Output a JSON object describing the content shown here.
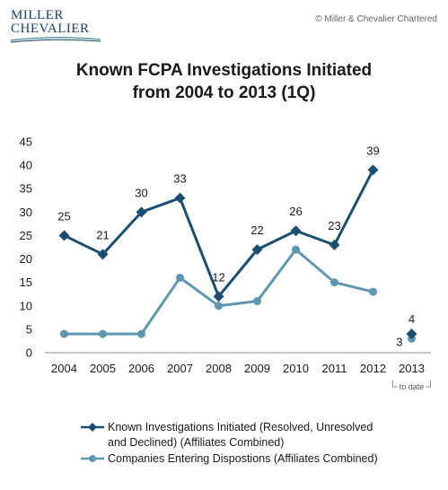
{
  "header": {
    "logo_line1": "MILLER",
    "logo_line2": "CHEVALIER",
    "copyright": "© Miller & Chevalier Chartered"
  },
  "chart_data": {
    "type": "line",
    "title_line1": "Known FCPA Investigations Initiated",
    "title_line2": "from 2004 to 2013 (1Q)",
    "categories": [
      "2004",
      "2005",
      "2006",
      "2007",
      "2008",
      "2009",
      "2010",
      "2011",
      "2012",
      "2013"
    ],
    "category_note": "to date",
    "ylim": [
      0,
      45
    ],
    "yticks": [
      0,
      5,
      10,
      15,
      20,
      25,
      30,
      35,
      40,
      45
    ],
    "grid": false,
    "legend_position": "bottom",
    "series": [
      {
        "name": "Known Investigations Initiated (Resolved, Unresolved and Declined) (Affiliates Combined)",
        "legend_line1": "Known Investigations Initiated (Resolved, Unresolved",
        "legend_line2": "and Declined) (Affiliates Combined)",
        "values": [
          25,
          21,
          30,
          33,
          12,
          22,
          26,
          23,
          39,
          4
        ],
        "data_labels": [
          "25",
          "21",
          "30",
          "33",
          "12",
          "22",
          "26",
          "23",
          "39",
          "4"
        ],
        "color": "#1b4f72",
        "marker": "diamond",
        "line_ends_before_last": true
      },
      {
        "name": "Companies Entering Dispostions (Affiliates Combined)",
        "legend_line1": "Companies Entering Dispostions (Affiliates Combined)",
        "values": [
          4,
          4,
          4,
          16,
          10,
          11,
          22,
          15,
          13,
          3
        ],
        "data_labels": [
          "",
          "",
          "",
          "",
          "",
          "",
          "",
          "",
          "",
          "3"
        ],
        "color": "#5f97b0",
        "marker": "circle",
        "line_ends_before_last": true
      }
    ]
  }
}
